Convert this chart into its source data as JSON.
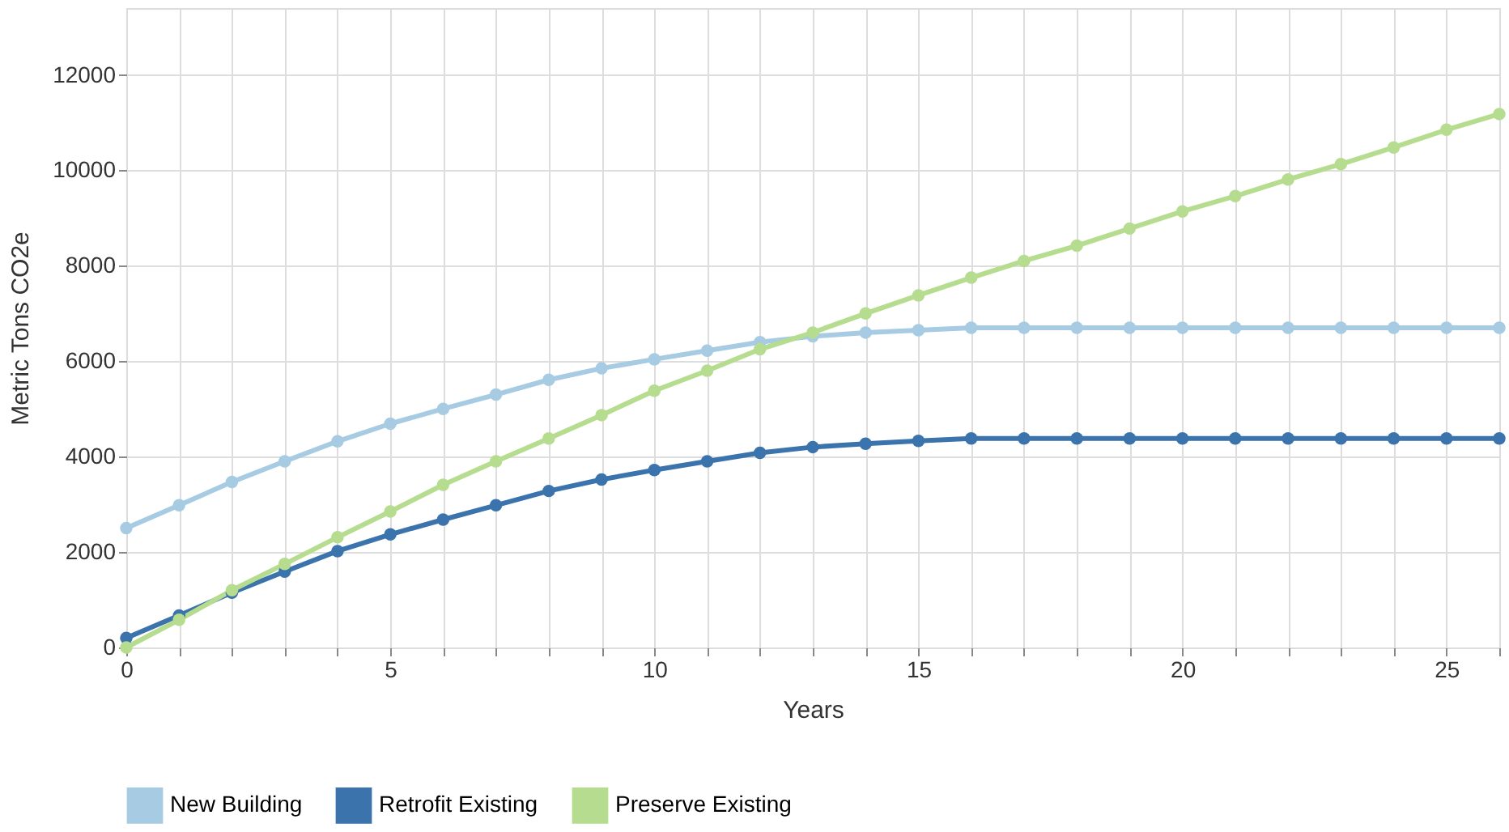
{
  "chart_data": {
    "type": "line",
    "xlabel": "Years",
    "ylabel": "Metric Tons CO2e",
    "x": [
      0,
      1,
      2,
      3,
      4,
      5,
      6,
      7,
      8,
      9,
      10,
      11,
      12,
      13,
      14,
      15,
      16,
      17,
      18,
      19,
      20,
      21,
      22,
      23,
      24,
      25,
      26
    ],
    "series": [
      {
        "name": "New Building",
        "color": "#a6cbe2",
        "values": [
          2500,
          2980,
          3470,
          3900,
          4320,
          4690,
          5000,
          5300,
          5610,
          5850,
          6040,
          6220,
          6400,
          6520,
          6600,
          6650,
          6700,
          6700,
          6700,
          6700,
          6700,
          6700,
          6700,
          6700,
          6700,
          6700,
          6700
        ]
      },
      {
        "name": "Retrofit Existing",
        "color": "#3b73ad",
        "values": [
          200,
          670,
          1150,
          1590,
          2020,
          2370,
          2680,
          2980,
          3280,
          3520,
          3720,
          3900,
          4080,
          4200,
          4270,
          4330,
          4380,
          4380,
          4380,
          4380,
          4380,
          4380,
          4380,
          4380,
          4380,
          4380,
          4380
        ]
      },
      {
        "name": "Preserve Existing",
        "color": "#b6dd8f",
        "values": [
          0,
          580,
          1200,
          1750,
          2310,
          2850,
          3410,
          3900,
          4380,
          4870,
          5380,
          5800,
          6250,
          6600,
          7000,
          7380,
          7750,
          8100,
          8420,
          8780,
          9140,
          9460,
          9810,
          10130,
          10480,
          10850,
          11180
        ]
      }
    ],
    "xlim": [
      0,
      26
    ],
    "xticks": [
      0,
      {
        "value": 1,
        "label": null
      },
      {
        "value": 2,
        "label": null
      },
      {
        "value": 3,
        "label": null
      },
      {
        "value": 4,
        "label": null
      },
      5,
      {
        "value": 6,
        "label": null
      },
      {
        "value": 7,
        "label": null
      },
      {
        "value": 8,
        "label": null
      },
      {
        "value": 9,
        "label": null
      },
      10,
      {
        "value": 11,
        "label": null
      },
      {
        "value": 12,
        "label": null
      },
      {
        "value": 13,
        "label": null
      },
      {
        "value": 14,
        "label": null
      },
      15,
      {
        "value": 16,
        "label": null
      },
      {
        "value": 17,
        "label": null
      },
      {
        "value": 18,
        "label": null
      },
      {
        "value": 19,
        "label": null
      },
      20,
      {
        "value": 21,
        "label": null
      },
      {
        "value": 22,
        "label": null
      },
      {
        "value": 23,
        "label": null
      },
      {
        "value": 24,
        "label": null
      },
      25,
      {
        "value": 26,
        "label": null
      }
    ],
    "ylim": [
      0,
      13400
    ],
    "yticks": [
      0,
      2000,
      4000,
      6000,
      8000,
      10000,
      12000
    ],
    "grid": true,
    "legend": "bottom",
    "marker": "circle",
    "line_style": "solid"
  }
}
